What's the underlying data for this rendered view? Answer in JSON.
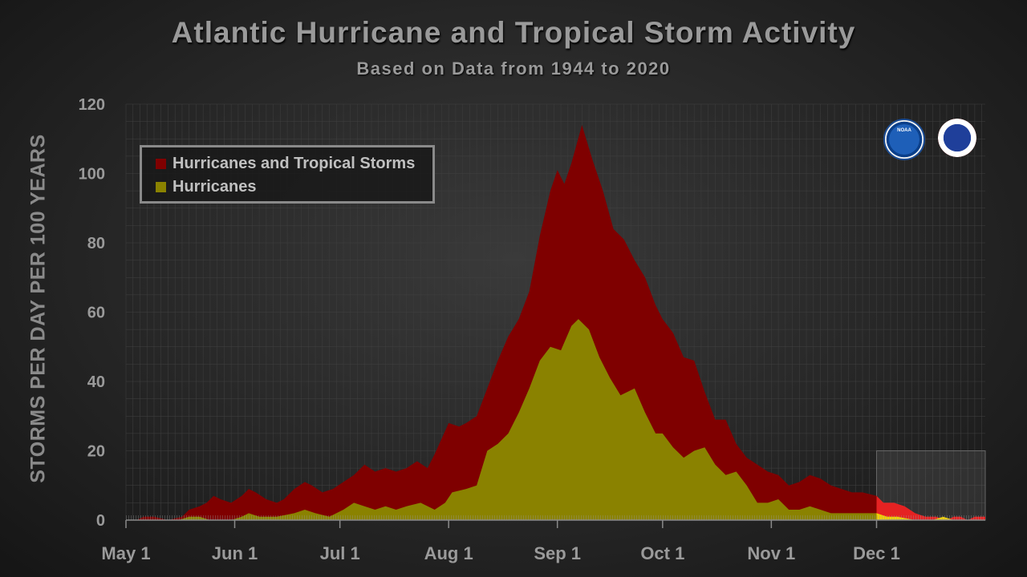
{
  "title": "Atlantic Hurricane and Tropical Storm Activity",
  "subtitle": "Based on Data from 1944 to 2020",
  "logos": {
    "noaa": "NOAA",
    "nws": "National Weather Service"
  },
  "colors": {
    "storms": "#7f0000",
    "hurricanes": "#8a8200",
    "storms_offseason": "#e52222",
    "hurricanes_offseason": "#f0d000",
    "legend_border": "#8a8a8a"
  },
  "chart_data": {
    "type": "area",
    "xlabel": "",
    "ylabel": "STORMS PER DAY PER 100 YEARS",
    "ylim": [
      0,
      120
    ],
    "yticks": [
      0,
      20,
      40,
      60,
      80,
      100,
      120
    ],
    "xlim": [
      0,
      245
    ],
    "xticks": [
      {
        "day": 0,
        "label": "May 1"
      },
      {
        "day": 31,
        "label": "Jun 1"
      },
      {
        "day": 61,
        "label": "Jul 1"
      },
      {
        "day": 92,
        "label": "Aug 1"
      },
      {
        "day": 123,
        "label": "Sep 1"
      },
      {
        "day": 153,
        "label": "Oct 1"
      },
      {
        "day": 184,
        "label": "Nov 1"
      },
      {
        "day": 214,
        "label": "Dec 1"
      }
    ],
    "grid": true,
    "legend_position": "top-left",
    "offseason_box": {
      "x_start_day": 214,
      "x_end_day": 245,
      "y_top": 20
    },
    "x_unit": "days since May 1",
    "series": [
      {
        "name": "Hurricanes and Tropical Storms",
        "points": [
          [
            0,
            0
          ],
          [
            3,
            0
          ],
          [
            5,
            1
          ],
          [
            8,
            1
          ],
          [
            12,
            0
          ],
          [
            16,
            1
          ],
          [
            18,
            3
          ],
          [
            21,
            4
          ],
          [
            23,
            5
          ],
          [
            25,
            7
          ],
          [
            27,
            6
          ],
          [
            30,
            5
          ],
          [
            33,
            7
          ],
          [
            35,
            9
          ],
          [
            37,
            8
          ],
          [
            40,
            6
          ],
          [
            43,
            5
          ],
          [
            45,
            6
          ],
          [
            48,
            9
          ],
          [
            51,
            11
          ],
          [
            53,
            10
          ],
          [
            56,
            8
          ],
          [
            59,
            9
          ],
          [
            62,
            11
          ],
          [
            65,
            13
          ],
          [
            68,
            16
          ],
          [
            71,
            14
          ],
          [
            74,
            15
          ],
          [
            77,
            14
          ],
          [
            80,
            15
          ],
          [
            83,
            17
          ],
          [
            86,
            15
          ],
          [
            88,
            19
          ],
          [
            92,
            28
          ],
          [
            95,
            27
          ],
          [
            97,
            28
          ],
          [
            100,
            30
          ],
          [
            103,
            38
          ],
          [
            106,
            46
          ],
          [
            109,
            53
          ],
          [
            112,
            58
          ],
          [
            115,
            66
          ],
          [
            118,
            82
          ],
          [
            121,
            95
          ],
          [
            123,
            101
          ],
          [
            125,
            97
          ],
          [
            127,
            103
          ],
          [
            130,
            114
          ],
          [
            133,
            104
          ],
          [
            136,
            95
          ],
          [
            139,
            84
          ],
          [
            142,
            81
          ],
          [
            145,
            75
          ],
          [
            148,
            70
          ],
          [
            151,
            62
          ],
          [
            153,
            58
          ],
          [
            156,
            54
          ],
          [
            159,
            47
          ],
          [
            162,
            46
          ],
          [
            165,
            37
          ],
          [
            168,
            29
          ],
          [
            171,
            29
          ],
          [
            174,
            22
          ],
          [
            177,
            18
          ],
          [
            180,
            16
          ],
          [
            183,
            14
          ],
          [
            186,
            13
          ],
          [
            189,
            10
          ],
          [
            192,
            11
          ],
          [
            195,
            13
          ],
          [
            198,
            12
          ],
          [
            201,
            10
          ],
          [
            204,
            9
          ],
          [
            207,
            8
          ],
          [
            210,
            8
          ],
          [
            214,
            7
          ],
          [
            216,
            5
          ],
          [
            219,
            5
          ],
          [
            222,
            4
          ],
          [
            225,
            2
          ],
          [
            228,
            1
          ],
          [
            231,
            1
          ],
          [
            234,
            0
          ],
          [
            236,
            1
          ],
          [
            238,
            1
          ],
          [
            240,
            0
          ],
          [
            242,
            1
          ],
          [
            245,
            1
          ]
        ]
      },
      {
        "name": "Hurricanes",
        "points": [
          [
            0,
            0
          ],
          [
            15,
            0
          ],
          [
            18,
            1
          ],
          [
            21,
            1
          ],
          [
            24,
            0
          ],
          [
            30,
            0
          ],
          [
            33,
            1
          ],
          [
            35,
            2
          ],
          [
            38,
            1
          ],
          [
            43,
            1
          ],
          [
            48,
            2
          ],
          [
            51,
            3
          ],
          [
            54,
            2
          ],
          [
            58,
            1
          ],
          [
            62,
            3
          ],
          [
            65,
            5
          ],
          [
            68,
            4
          ],
          [
            71,
            3
          ],
          [
            74,
            4
          ],
          [
            77,
            3
          ],
          [
            80,
            4
          ],
          [
            84,
            5
          ],
          [
            88,
            3
          ],
          [
            91,
            5
          ],
          [
            93,
            8
          ],
          [
            97,
            9
          ],
          [
            100,
            10
          ],
          [
            103,
            20
          ],
          [
            106,
            22
          ],
          [
            109,
            25
          ],
          [
            112,
            31
          ],
          [
            115,
            38
          ],
          [
            118,
            46
          ],
          [
            121,
            50
          ],
          [
            124,
            49
          ],
          [
            127,
            56
          ],
          [
            129,
            58
          ],
          [
            132,
            55
          ],
          [
            135,
            47
          ],
          [
            138,
            41
          ],
          [
            141,
            36
          ],
          [
            143,
            37
          ],
          [
            145,
            38
          ],
          [
            148,
            31
          ],
          [
            151,
            25
          ],
          [
            153,
            25
          ],
          [
            156,
            21
          ],
          [
            159,
            18
          ],
          [
            162,
            20
          ],
          [
            165,
            21
          ],
          [
            168,
            16
          ],
          [
            171,
            13
          ],
          [
            174,
            14
          ],
          [
            177,
            10
          ],
          [
            180,
            5
          ],
          [
            183,
            5
          ],
          [
            186,
            6
          ],
          [
            189,
            3
          ],
          [
            192,
            3
          ],
          [
            195,
            4
          ],
          [
            198,
            3
          ],
          [
            201,
            2
          ],
          [
            204,
            2
          ],
          [
            207,
            2
          ],
          [
            210,
            2
          ],
          [
            214,
            2
          ],
          [
            217,
            1
          ],
          [
            220,
            1
          ],
          [
            225,
            0
          ],
          [
            230,
            0
          ],
          [
            233,
            1
          ],
          [
            236,
            0
          ],
          [
            245,
            0
          ]
        ]
      }
    ]
  }
}
